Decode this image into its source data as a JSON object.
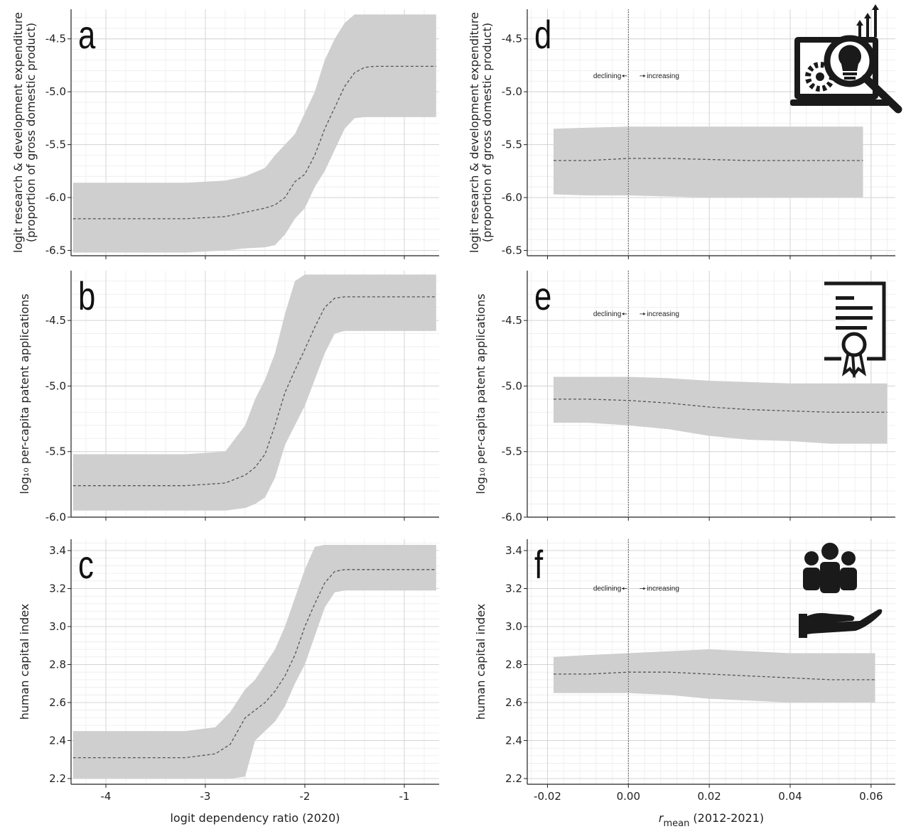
{
  "chart_data": [
    {
      "id": "a",
      "type": "area",
      "letter": "a",
      "xlabel": "logit dependency ratio (2020)",
      "ylabel_lines": [
        "logit research & development expenditure",
        "(proportion of gross domestic product)"
      ],
      "xlim": [
        -4.35,
        -0.65
      ],
      "ylim": [
        -6.55,
        -4.22
      ],
      "xticks": [
        -4,
        -3,
        -2,
        -1
      ],
      "xtick_labels": [
        "-4",
        "-3",
        "-2",
        "-1"
      ],
      "yticks": [
        -4.5,
        -5.0,
        -5.5,
        -6.0,
        -6.5
      ],
      "ytick_labels": [
        "-4.5",
        "-5.0",
        "-5.5",
        "-6.0",
        "-6.5"
      ],
      "show_xticklabels": false,
      "series": [
        {
          "x": [
            -4.33,
            -3.2,
            -2.8,
            -2.6,
            -2.4,
            -2.3,
            -2.2,
            -2.1,
            -2.0,
            -1.9,
            -1.8,
            -1.7,
            -1.6,
            -1.5,
            -1.4,
            -1.3,
            -1.0,
            -0.68
          ],
          "mean": [
            -6.2,
            -6.2,
            -6.18,
            -6.14,
            -6.1,
            -6.07,
            -6.0,
            -5.85,
            -5.78,
            -5.6,
            -5.35,
            -5.15,
            -4.95,
            -4.82,
            -4.77,
            -4.76,
            -4.76,
            -4.76
          ],
          "lower": [
            -6.52,
            -6.52,
            -6.5,
            -6.48,
            -6.47,
            -6.45,
            -6.35,
            -6.2,
            -6.1,
            -5.9,
            -5.75,
            -5.55,
            -5.35,
            -5.25,
            -5.24,
            -5.24,
            -5.24,
            -5.24
          ],
          "upper": [
            -5.86,
            -5.86,
            -5.84,
            -5.8,
            -5.72,
            -5.6,
            -5.5,
            -5.4,
            -5.2,
            -5.0,
            -4.7,
            -4.5,
            -4.35,
            -4.27,
            -4.27,
            -4.27,
            -4.27,
            -4.27
          ]
        }
      ]
    },
    {
      "id": "b",
      "type": "area",
      "letter": "b",
      "xlabel": "logit dependency ratio (2020)",
      "ylabel_lines": [
        "log₁₀ per-capita patent applications"
      ],
      "xlim": [
        -4.35,
        -0.65
      ],
      "ylim": [
        -6.0,
        -4.12
      ],
      "xticks": [
        -4,
        -3,
        -2,
        -1
      ],
      "xtick_labels": [
        "-4",
        "-3",
        "-2",
        "-1"
      ],
      "yticks": [
        -4.5,
        -5.0,
        -5.5,
        -6.0
      ],
      "ytick_labels": [
        "-4.5",
        "-5.0",
        "-5.5",
        "-6.0"
      ],
      "show_xticklabels": false,
      "series": [
        {
          "x": [
            -4.33,
            -3.2,
            -2.8,
            -2.6,
            -2.5,
            -2.4,
            -2.3,
            -2.2,
            -2.1,
            -2.0,
            -1.9,
            -1.8,
            -1.7,
            -1.6,
            -1.5,
            -1.3,
            -1.0,
            -0.68
          ],
          "mean": [
            -5.76,
            -5.76,
            -5.74,
            -5.68,
            -5.62,
            -5.52,
            -5.3,
            -5.05,
            -4.88,
            -4.72,
            -4.55,
            -4.4,
            -4.33,
            -4.32,
            -4.32,
            -4.32,
            -4.32,
            -4.32
          ],
          "lower": [
            -5.95,
            -5.95,
            -5.95,
            -5.93,
            -5.9,
            -5.85,
            -5.7,
            -5.45,
            -5.3,
            -5.15,
            -4.95,
            -4.75,
            -4.6,
            -4.58,
            -4.58,
            -4.58,
            -4.58,
            -4.58
          ],
          "upper": [
            -5.52,
            -5.52,
            -5.5,
            -5.3,
            -5.1,
            -4.95,
            -4.75,
            -4.45,
            -4.2,
            -4.15,
            -4.15,
            -4.15,
            -4.15,
            -4.15,
            -4.15,
            -4.15,
            -4.15,
            -4.15
          ]
        }
      ]
    },
    {
      "id": "c",
      "type": "area",
      "letter": "c",
      "xlabel": "logit dependency ratio (2020)",
      "ylabel_lines": [
        "human capital index"
      ],
      "xlim": [
        -4.35,
        -0.65
      ],
      "ylim": [
        2.17,
        3.46
      ],
      "xticks": [
        -4,
        -3,
        -2,
        -1
      ],
      "xtick_labels": [
        "-4",
        "-3",
        "-2",
        "-1"
      ],
      "yticks": [
        2.2,
        2.4,
        2.6,
        2.8,
        3.0,
        3.2,
        3.4
      ],
      "ytick_labels": [
        "2.2",
        "2.4",
        "2.6",
        "2.8",
        "3.0",
        "3.2",
        "3.4"
      ],
      "show_xticklabels": true,
      "series": [
        {
          "x": [
            -4.33,
            -3.2,
            -2.9,
            -2.75,
            -2.6,
            -2.5,
            -2.4,
            -2.3,
            -2.2,
            -2.1,
            -2.0,
            -1.9,
            -1.8,
            -1.7,
            -1.6,
            -1.5,
            -1.3,
            -1.0,
            -0.68
          ],
          "mean": [
            2.31,
            2.31,
            2.33,
            2.38,
            2.52,
            2.56,
            2.6,
            2.66,
            2.74,
            2.85,
            3.0,
            3.12,
            3.23,
            3.29,
            3.3,
            3.3,
            3.3,
            3.3,
            3.3
          ],
          "lower": [
            2.2,
            2.2,
            2.2,
            2.2,
            2.21,
            2.4,
            2.45,
            2.5,
            2.58,
            2.7,
            2.8,
            2.95,
            3.1,
            3.18,
            3.19,
            3.19,
            3.19,
            3.19,
            3.19
          ],
          "upper": [
            2.45,
            2.45,
            2.47,
            2.55,
            2.67,
            2.72,
            2.8,
            2.88,
            3.0,
            3.15,
            3.3,
            3.42,
            3.43,
            3.43,
            3.43,
            3.43,
            3.43,
            3.43,
            3.43
          ]
        }
      ]
    },
    {
      "id": "d",
      "type": "area",
      "letter": "d",
      "xlabel": "r",
      "xlabel_sub": "mean",
      "xlabel_rest": " (2012-2021)",
      "ylabel_lines": [
        "logit research & development expenditure",
        "(proportion of gross domestic product)"
      ],
      "xlim": [
        -0.025,
        0.066
      ],
      "ylim": [
        -6.55,
        -4.22
      ],
      "xticks": [
        -0.02,
        0.0,
        0.02,
        0.04,
        0.06
      ],
      "xtick_labels": [
        "-0.02",
        "0.00",
        "0.02",
        "0.04",
        "0.06"
      ],
      "yticks": [
        -4.5,
        -5.0,
        -5.5,
        -6.0,
        -6.5
      ],
      "ytick_labels": [
        "-4.5",
        "-5.0",
        "-5.5",
        "-6.0",
        "-6.5"
      ],
      "show_xticklabels": false,
      "vline": 0.0,
      "vline_label_left": "declining",
      "vline_label_right": "increasing",
      "ann_y": -4.85,
      "icon": "innovation-icon",
      "series": [
        {
          "x": [
            -0.0185,
            -0.01,
            0.0,
            0.01,
            0.02,
            0.03,
            0.04,
            0.05,
            0.058
          ],
          "mean": [
            -5.65,
            -5.65,
            -5.63,
            -5.63,
            -5.64,
            -5.65,
            -5.65,
            -5.65,
            -5.65
          ],
          "lower": [
            -5.97,
            -5.98,
            -5.98,
            -5.99,
            -6.0,
            -6.0,
            -6.0,
            -6.0,
            -6.0
          ],
          "upper": [
            -5.35,
            -5.34,
            -5.33,
            -5.33,
            -5.33,
            -5.33,
            -5.33,
            -5.33,
            -5.33
          ]
        }
      ]
    },
    {
      "id": "e",
      "type": "area",
      "letter": "e",
      "xlabel": "r",
      "xlabel_sub": "mean",
      "xlabel_rest": " (2012-2021)",
      "ylabel_lines": [
        "log₁₀ per-capita patent applications"
      ],
      "xlim": [
        -0.025,
        0.066
      ],
      "ylim": [
        -6.0,
        -4.12
      ],
      "xticks": [
        -0.02,
        0.0,
        0.02,
        0.04,
        0.06
      ],
      "xtick_labels": [
        "-0.02",
        "0.00",
        "0.02",
        "0.04",
        "0.06"
      ],
      "yticks": [
        -4.5,
        -5.0,
        -5.5,
        -6.0
      ],
      "ytick_labels": [
        "-4.5",
        "-5.0",
        "-5.5",
        "-6.0"
      ],
      "show_xticklabels": false,
      "vline": 0.0,
      "vline_label_left": "declining",
      "vline_label_right": "increasing",
      "ann_y": -4.45,
      "icon": "certificate-icon",
      "series": [
        {
          "x": [
            -0.0185,
            -0.01,
            0.0,
            0.01,
            0.02,
            0.03,
            0.04,
            0.05,
            0.064
          ],
          "mean": [
            -5.1,
            -5.1,
            -5.11,
            -5.13,
            -5.16,
            -5.18,
            -5.19,
            -5.2,
            -5.2
          ],
          "lower": [
            -5.28,
            -5.28,
            -5.3,
            -5.33,
            -5.38,
            -5.41,
            -5.42,
            -5.44,
            -5.44
          ],
          "upper": [
            -4.93,
            -4.93,
            -4.93,
            -4.94,
            -4.96,
            -4.97,
            -4.98,
            -4.98,
            -4.98
          ]
        }
      ]
    },
    {
      "id": "f",
      "type": "area",
      "letter": "f",
      "xlabel": "r",
      "xlabel_sub": "mean",
      "xlabel_rest": " (2012-2021)",
      "ylabel_lines": [
        "human capital index"
      ],
      "xlim": [
        -0.025,
        0.066
      ],
      "ylim": [
        2.17,
        3.46
      ],
      "xticks": [
        -0.02,
        0.0,
        0.02,
        0.04,
        0.06
      ],
      "xtick_labels": [
        "-0.02",
        "0.00",
        "0.02",
        "0.04",
        "0.06"
      ],
      "yticks": [
        2.2,
        2.4,
        2.6,
        2.8,
        3.0,
        3.2,
        3.4
      ],
      "ytick_labels": [
        "2.2",
        "2.4",
        "2.6",
        "2.8",
        "3.0",
        "3.2",
        "3.4"
      ],
      "show_xticklabels": true,
      "vline": 0.0,
      "vline_label_left": "declining",
      "vline_label_right": "increasing",
      "ann_y": 3.2,
      "icon": "people-in-hand-icon",
      "series": [
        {
          "x": [
            -0.0185,
            -0.01,
            0.0,
            0.01,
            0.02,
            0.03,
            0.04,
            0.05,
            0.061
          ],
          "mean": [
            2.75,
            2.75,
            2.76,
            2.76,
            2.75,
            2.74,
            2.73,
            2.72,
            2.72
          ],
          "lower": [
            2.65,
            2.65,
            2.65,
            2.64,
            2.62,
            2.61,
            2.6,
            2.6,
            2.6
          ],
          "upper": [
            2.84,
            2.85,
            2.86,
            2.87,
            2.88,
            2.87,
            2.86,
            2.86,
            2.86
          ]
        }
      ]
    }
  ]
}
